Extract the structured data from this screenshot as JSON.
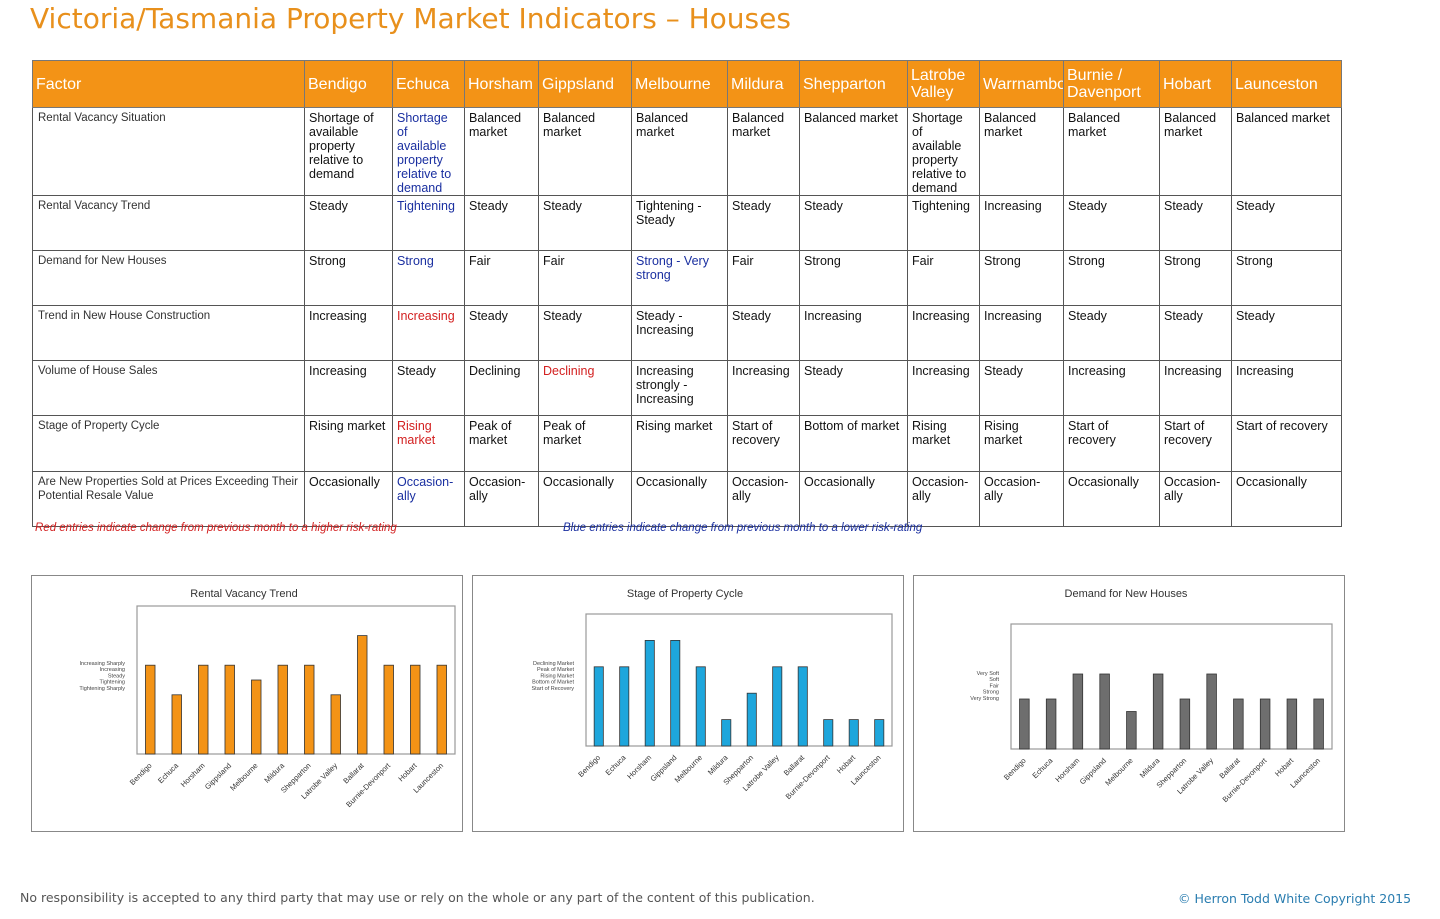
{
  "title": "Victoria/Tasmania Property Market Indicators – Houses",
  "table": {
    "headers": [
      "Factor",
      "Bendigo",
      "Echuca",
      "Horsham",
      "Gippsland",
      "Melbourne",
      "Mildura",
      "Shepparton",
      "Latrobe Valley",
      "Warrnambool",
      "Burnie / Davenport",
      "Hobart",
      "Launceston"
    ],
    "rows": [
      {
        "factor": "Rental Vacancy Situation",
        "cells": [
          {
            "text": "Shortage of available property relative to demand",
            "change": ""
          },
          {
            "text": "Shortage of available property relative to demand",
            "change": "down"
          },
          {
            "text": "Balanced market",
            "change": ""
          },
          {
            "text": "Balanced market",
            "change": ""
          },
          {
            "text": "Balanced market",
            "change": ""
          },
          {
            "text": "Balanced market",
            "change": ""
          },
          {
            "text": "Balanced market",
            "change": ""
          },
          {
            "text": "Shortage of available property relative to demand",
            "change": ""
          },
          {
            "text": "Balanced market",
            "change": ""
          },
          {
            "text": "Balanced market",
            "change": ""
          },
          {
            "text": "Balanced market",
            "change": ""
          },
          {
            "text": "Balanced market",
            "change": ""
          }
        ]
      },
      {
        "factor": "Rental Vacancy Trend",
        "cells": [
          {
            "text": "Steady",
            "change": ""
          },
          {
            "text": "Tightening",
            "change": "down"
          },
          {
            "text": "Steady",
            "change": ""
          },
          {
            "text": "Steady",
            "change": ""
          },
          {
            "text": "Tightening - Steady",
            "change": ""
          },
          {
            "text": "Steady",
            "change": ""
          },
          {
            "text": "Steady",
            "change": ""
          },
          {
            "text": "Tightening",
            "change": ""
          },
          {
            "text": "Increasing",
            "change": ""
          },
          {
            "text": "Steady",
            "change": ""
          },
          {
            "text": "Steady",
            "change": ""
          },
          {
            "text": "Steady",
            "change": ""
          }
        ]
      },
      {
        "factor": "Demand for New Houses",
        "cells": [
          {
            "text": "Strong",
            "change": ""
          },
          {
            "text": "Strong",
            "change": "down"
          },
          {
            "text": "Fair",
            "change": ""
          },
          {
            "text": "Fair",
            "change": ""
          },
          {
            "text": "Strong - Very strong",
            "change": "down"
          },
          {
            "text": "Fair",
            "change": ""
          },
          {
            "text": "Strong",
            "change": ""
          },
          {
            "text": "Fair",
            "change": ""
          },
          {
            "text": "Strong",
            "change": ""
          },
          {
            "text": "Strong",
            "change": ""
          },
          {
            "text": "Strong",
            "change": ""
          },
          {
            "text": "Strong",
            "change": ""
          }
        ]
      },
      {
        "factor": "Trend in New House Construction",
        "cells": [
          {
            "text": "Increasing",
            "change": ""
          },
          {
            "text": "Increasing",
            "change": "up"
          },
          {
            "text": "Steady",
            "change": ""
          },
          {
            "text": "Steady",
            "change": ""
          },
          {
            "text": "Steady - Increasing",
            "change": ""
          },
          {
            "text": "Steady",
            "change": ""
          },
          {
            "text": "Increasing",
            "change": ""
          },
          {
            "text": "Increasing",
            "change": ""
          },
          {
            "text": "Increasing",
            "change": ""
          },
          {
            "text": "Steady",
            "change": ""
          },
          {
            "text": "Steady",
            "change": ""
          },
          {
            "text": "Steady",
            "change": ""
          }
        ]
      },
      {
        "factor": "Volume of House Sales",
        "cells": [
          {
            "text": "Increasing",
            "change": ""
          },
          {
            "text": "Steady",
            "change": ""
          },
          {
            "text": "Declining",
            "change": ""
          },
          {
            "text": "Declining",
            "change": "up"
          },
          {
            "text": "Increasing strongly - Increasing",
            "change": ""
          },
          {
            "text": "Increasing",
            "change": ""
          },
          {
            "text": "Steady",
            "change": ""
          },
          {
            "text": "Increasing",
            "change": ""
          },
          {
            "text": "Steady",
            "change": ""
          },
          {
            "text": "Increasing",
            "change": ""
          },
          {
            "text": "Increasing",
            "change": ""
          },
          {
            "text": "Increasing",
            "change": ""
          }
        ]
      },
      {
        "factor": "Stage of Property Cycle",
        "cells": [
          {
            "text": "Rising market",
            "change": ""
          },
          {
            "text": "Rising market",
            "change": "up"
          },
          {
            "text": "Peak of market",
            "change": ""
          },
          {
            "text": "Peak of market",
            "change": ""
          },
          {
            "text": "Rising market",
            "change": ""
          },
          {
            "text": "Start of recovery",
            "change": ""
          },
          {
            "text": "Bottom of market",
            "change": ""
          },
          {
            "text": "Rising market",
            "change": ""
          },
          {
            "text": "Rising market",
            "change": ""
          },
          {
            "text": "Start of recovery",
            "change": ""
          },
          {
            "text": "Start of recovery",
            "change": ""
          },
          {
            "text": "Start of recovery",
            "change": ""
          }
        ]
      },
      {
        "factor": "Are New Properties Sold at Prices Exceeding Their Potential Resale Value",
        "cells": [
          {
            "text": "Occasionally",
            "change": ""
          },
          {
            "text": "Occasion-ally",
            "change": "down"
          },
          {
            "text": "Occasion-ally",
            "change": ""
          },
          {
            "text": "Occasionally",
            "change": ""
          },
          {
            "text": "Occasionally",
            "change": ""
          },
          {
            "text": "Occasion-ally",
            "change": ""
          },
          {
            "text": "Occasionally",
            "change": ""
          },
          {
            "text": "Occasion-ally",
            "change": ""
          },
          {
            "text": "Occasion-ally",
            "change": ""
          },
          {
            "text": "Occasionally",
            "change": ""
          },
          {
            "text": "Occasion-ally",
            "change": ""
          },
          {
            "text": "Occasionally",
            "change": ""
          }
        ]
      }
    ]
  },
  "notes": {
    "red": "Red entries indicate change from previous month to a higher risk-rating",
    "blue": "Blue entries indicate change from previous month to a lower risk-rating"
  },
  "chart_data": [
    {
      "type": "bar",
      "title": "Rental Vacancy Trend",
      "categories": [
        "Bendigo",
        "Echuca",
        "Horsham",
        "Gippsland",
        "Melbourne",
        "Mildura",
        "Shepparton",
        "Latrobe Valley",
        "Ballarat",
        "Burnie-Devonport",
        "Hobart",
        "Launceston"
      ],
      "y_levels": [
        "Increasing Sharply",
        "Increasing",
        "Steady",
        "Tightening",
        "Tightening Sharply"
      ],
      "values": [
        3,
        2,
        3,
        3,
        2.5,
        3,
        3,
        2,
        4,
        3,
        3,
        3
      ],
      "ylim": [
        0,
        5
      ],
      "color": "#f39316",
      "grid": false
    },
    {
      "type": "bar",
      "title": "Stage of Property Cycle",
      "categories": [
        "Bendigo",
        "Echuca",
        "Horsham",
        "Gippsland",
        "Melbourne",
        "Mildura",
        "Shepparton",
        "Latrobe Valley",
        "Ballarat",
        "Burnie-Devonport",
        "Hobart",
        "Launceston"
      ],
      "y_levels": [
        "Declining Market",
        "Peak of Market",
        "Rising Market",
        "Bottom of Market",
        "Start of Recovery"
      ],
      "values": [
        3,
        3,
        4,
        4,
        3,
        1,
        2,
        3,
        3,
        1,
        1,
        1
      ],
      "ylim": [
        0,
        5
      ],
      "color": "#1ea6dc",
      "grid": false
    },
    {
      "type": "bar",
      "title": "Demand for New Houses",
      "categories": [
        "Bendigo",
        "Echuca",
        "Horsham",
        "Gippsland",
        "Melbourne",
        "Mildura",
        "Shepparton",
        "Latrobe Valley",
        "Ballarat",
        "Burnie-Devonport",
        "Hobart",
        "Launceston"
      ],
      "y_levels": [
        "Very Soft",
        "Soft",
        "Fair",
        "Strong",
        "Very Strong"
      ],
      "values": [
        2,
        2,
        3,
        3,
        1.5,
        3,
        2,
        3,
        2,
        2,
        2,
        2
      ],
      "ylim": [
        0,
        5
      ],
      "color": "#6e6e6e",
      "grid": false
    }
  ],
  "footer": {
    "disclaimer": "No responsibility is accepted to any third party that may use or rely on the whole or any part of the content of this publication.",
    "copyright": "© Herron Todd White Copyright 2015"
  }
}
